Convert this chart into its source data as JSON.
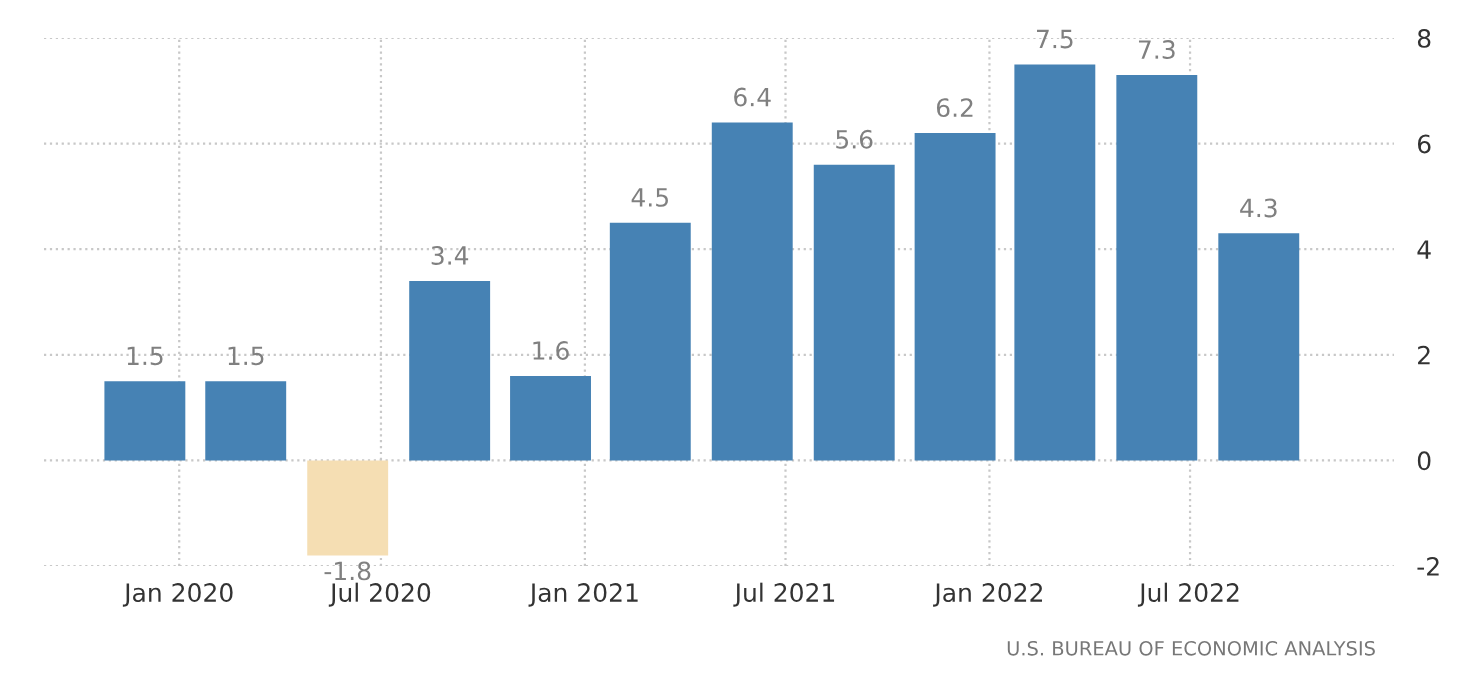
{
  "chart_data": {
    "type": "bar",
    "x": [
      "2019-12",
      "2020-03",
      "2020-06",
      "2020-09",
      "2020-12",
      "2021-03",
      "2021-06",
      "2021-09",
      "2021-12",
      "2022-03",
      "2022-06",
      "2022-09"
    ],
    "values": [
      1.5,
      1.5,
      -1.8,
      3.4,
      1.6,
      4.5,
      6.4,
      5.6,
      6.2,
      7.5,
      7.3,
      4.3
    ],
    "colors": [
      "#4682b4",
      "#4682b4",
      "#f5deb3",
      "#4682b4",
      "#4682b4",
      "#4682b4",
      "#4682b4",
      "#4682b4",
      "#4682b4",
      "#4682b4",
      "#4682b4",
      "#4682b4"
    ],
    "data_labels": true,
    "xlim": [
      "2019-09",
      "2023-01"
    ],
    "xticks": [
      {
        "value": "2020-01",
        "label": "Jan 2020"
      },
      {
        "value": "2020-07",
        "label": "Jul 2020"
      },
      {
        "value": "2021-01",
        "label": "Jan 2021"
      },
      {
        "value": "2021-07",
        "label": "Jul 2021"
      },
      {
        "value": "2022-01",
        "label": "Jan 2022"
      },
      {
        "value": "2022-07",
        "label": "Jul 2022"
      }
    ],
    "ylim": [
      -2,
      8
    ],
    "yticks": [
      -2,
      0,
      2,
      4,
      6,
      8
    ],
    "grid": true,
    "annotations": [
      "U.S. BUREAU OF ECONOMIC ANALYSIS"
    ]
  }
}
